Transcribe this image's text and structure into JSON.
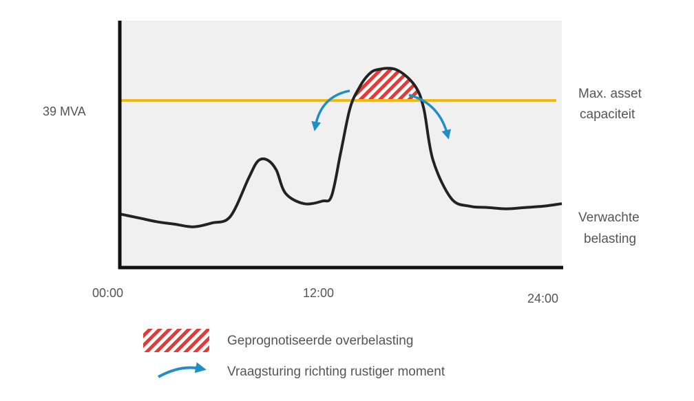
{
  "chart_data": {
    "type": "line",
    "x_range": [
      "00:00",
      "24:00"
    ],
    "x_ticks": [
      "00:00",
      "12:00",
      "24:00"
    ],
    "threshold": {
      "value_label": "39 MVA",
      "label_line1": "Max. asset",
      "label_line2": "capaciteit",
      "color": "#f5b800"
    },
    "series": [
      {
        "name_line1": "Verwachte",
        "name_line2": "belasting",
        "color": "#222222",
        "x": [
          0,
          1,
          2,
          3,
          4,
          5,
          6,
          7,
          7.5,
          8,
          8.5,
          9,
          10,
          11,
          11.5,
          12,
          12.5,
          13,
          13.5,
          14,
          15,
          16,
          16.5,
          17,
          18,
          19,
          20,
          21,
          22,
          23,
          24
        ],
        "y": [
          40,
          37,
          34,
          32,
          30,
          33,
          38,
          68,
          81,
          82,
          74,
          56,
          48,
          50,
          54,
          88,
          122,
          138,
          148,
          152,
          152,
          140,
          122,
          82,
          52,
          46,
          45,
          44,
          45,
          46,
          48
        ]
      }
    ],
    "y_scale": {
      "threshold_level": 128,
      "max": 190
    },
    "overload_color": "#e53935",
    "arrow_color": "#1f8fc4",
    "legend": [
      {
        "type": "hatch",
        "label": "Geprognotiseerde overbelasting"
      },
      {
        "type": "arrow",
        "label": "Vraagsturing richting rustiger moment"
      }
    ],
    "grid": false,
    "background": "#f0f0f0"
  }
}
